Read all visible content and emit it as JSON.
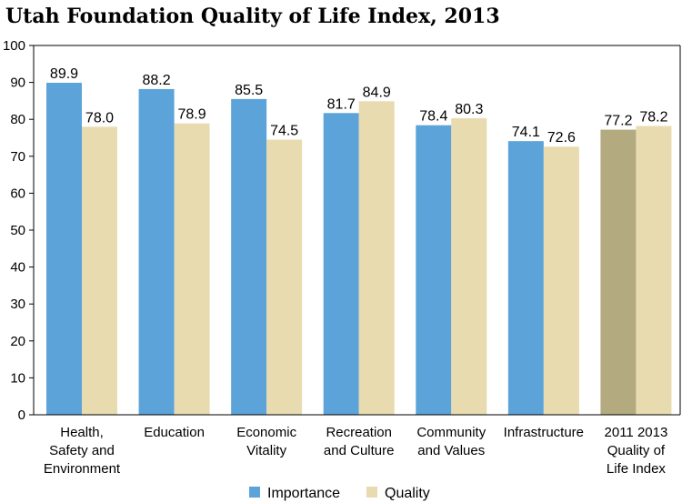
{
  "chart_data": {
    "type": "bar",
    "title": "Utah Foundation Quality of Life Index, 2013",
    "xlabel": "",
    "ylabel": "",
    "ylim": [
      0,
      100
    ],
    "yticks": [
      0,
      10,
      20,
      30,
      40,
      50,
      60,
      70,
      80,
      90,
      100
    ],
    "grid": false,
    "legend_position": "bottom",
    "categories": [
      [
        "Health,",
        "Safety and",
        "Environment"
      ],
      [
        "Education"
      ],
      [
        "Economic",
        "Vitality"
      ],
      [
        "Recreation",
        "and Culture"
      ],
      [
        "Community",
        "and Values"
      ],
      [
        "Infrastructure"
      ],
      [
        "2011  2013",
        "Quality of",
        "Life Index"
      ]
    ],
    "series": [
      {
        "name": "Importance",
        "color": "#5ba3d9",
        "values": [
          89.9,
          88.2,
          85.5,
          81.7,
          78.4,
          74.1,
          77.2
        ],
        "labels": [
          "89.9",
          "88.2",
          "85.5",
          "81.7",
          "78.4",
          "74.1",
          "77.2"
        ]
      },
      {
        "name": "Quality",
        "color": "#e8dbb0",
        "values": [
          78.0,
          78.9,
          74.5,
          84.9,
          80.3,
          72.6,
          78.2
        ],
        "labels": [
          "78.0",
          "78.9",
          "74.5",
          "84.9",
          "80.3",
          "72.6",
          "78.2"
        ]
      }
    ],
    "special_bar_color": "#b3aa80",
    "special_bar_note": "2011"
  }
}
